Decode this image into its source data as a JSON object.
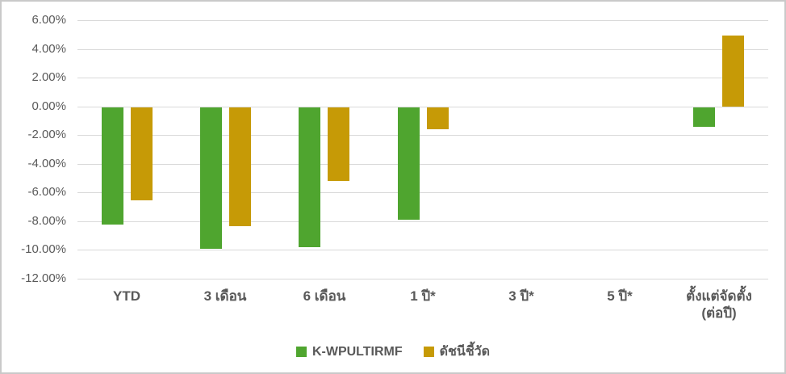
{
  "chart_data": {
    "type": "bar",
    "title": "",
    "xlabel": "",
    "ylabel": "",
    "categories": [
      "YTD",
      "3 เดือน",
      "6 เดือน",
      "1 ปี*",
      "3 ปี*",
      "5 ปี*",
      "ตั้งแต่จัดตั้ง\n(ต่อปี)"
    ],
    "series": [
      {
        "name": "K-WPULTIRMF",
        "color": "#4FA52F",
        "values": [
          -8.2,
          -9.9,
          -9.8,
          -7.9,
          null,
          null,
          -1.4
        ]
      },
      {
        "name": "ดัชนีชี้วัด",
        "color": "#C69A06",
        "values": [
          -6.5,
          -8.3,
          -5.2,
          -1.6,
          null,
          null,
          5.0
        ]
      }
    ],
    "ylim": [
      -12,
      6
    ],
    "yticks": [
      {
        "value": 6,
        "label": "6.00%"
      },
      {
        "value": 4,
        "label": "4.00%"
      },
      {
        "value": 2,
        "label": "2.00%"
      },
      {
        "value": 0,
        "label": "0.00%"
      },
      {
        "value": -2,
        "label": "-2.00%"
      },
      {
        "value": -4,
        "label": "-4.00%"
      },
      {
        "value": -6,
        "label": "-6.00%"
      },
      {
        "value": -8,
        "label": "-8.00%"
      },
      {
        "value": -10,
        "label": "-10.00%"
      },
      {
        "value": -12,
        "label": "-12.00%"
      }
    ],
    "grid": true,
    "legend_position": "bottom",
    "value_format": "percent"
  },
  "styles": {
    "background_color": "#FFFFFF",
    "border_color": "#C9C9C9",
    "gridline_color": "#D9D9D9",
    "text_color": "#595959"
  }
}
